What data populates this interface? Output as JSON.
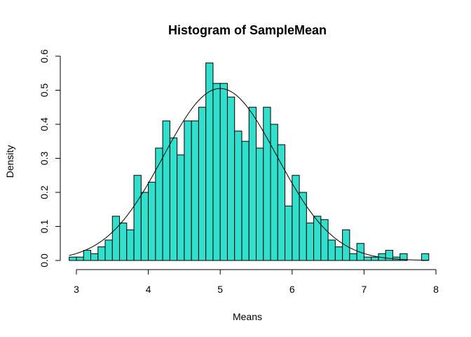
{
  "chart_data": {
    "type": "bar",
    "title": "Histogram of SampleMean",
    "xlabel": "Means",
    "ylabel": "Density",
    "xlim": [
      2.9,
      7.9
    ],
    "ylim": [
      0,
      0.6
    ],
    "x_ticks": [
      3,
      4,
      5,
      6,
      7,
      8
    ],
    "y_ticks": [
      0.0,
      0.1,
      0.2,
      0.3,
      0.4,
      0.5,
      0.6
    ],
    "y_tick_labels": [
      "0.0",
      "0.1",
      "0.2",
      "0.3",
      "0.4",
      "0.5",
      "0.6"
    ],
    "bin_width": 0.1,
    "bin_start": 2.9,
    "values": [
      0.01,
      0.01,
      0.03,
      0.02,
      0.04,
      0.06,
      0.13,
      0.11,
      0.09,
      0.25,
      0.2,
      0.23,
      0.33,
      0.41,
      0.36,
      0.31,
      0.41,
      0.41,
      0.45,
      0.58,
      0.52,
      0.52,
      0.48,
      0.38,
      0.35,
      0.45,
      0.33,
      0.45,
      0.4,
      0.34,
      0.16,
      0.25,
      0.2,
      0.11,
      0.13,
      0.12,
      0.06,
      0.04,
      0.09,
      0.02,
      0.05,
      0.01,
      0.01,
      0.02,
      0.03,
      0.01,
      0.02,
      0.0,
      0.0,
      0.02
    ],
    "bar_color": "#30E0CC",
    "bar_edge_color": "#000000",
    "density_curve": {
      "type": "normal",
      "mean": 5.0,
      "sd": 0.79,
      "color": "#000000"
    }
  }
}
